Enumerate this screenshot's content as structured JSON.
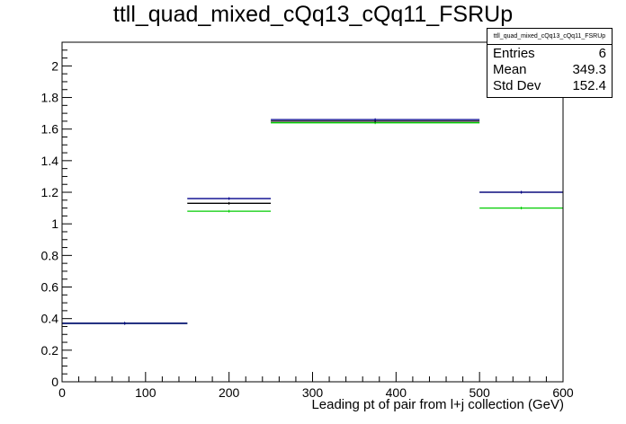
{
  "title": "ttll_quad_mixed_cQq13_cQq11_FSRUp",
  "stats": {
    "name": "ttll_quad_mixed_cQq13_cQq11_FSRUp",
    "entries_label": "Entries",
    "entries_value": "6",
    "mean_label": "Mean",
    "mean_value": "349.3",
    "stddev_label": "Std Dev",
    "stddev_value": "152.4"
  },
  "chart_data": {
    "type": "histogram",
    "title": "ttll_quad_mixed_cQq13_cQq11_FSRUp",
    "xlabel": "Leading pt of pair from l+j collection (GeV)",
    "ylabel": "",
    "xlim": [
      0,
      600
    ],
    "ylim": [
      0,
      2.15
    ],
    "bin_edges": [
      0,
      150,
      250,
      500,
      600
    ],
    "series": [
      {
        "values": [
          0.37,
          1.16,
          1.66,
          1.2
        ],
        "color": "#00008b"
      },
      {
        "values": [
          0.37,
          1.13,
          1.65,
          1.2
        ],
        "color": "#000000"
      },
      {
        "values": [
          0.37,
          1.08,
          1.64,
          1.1
        ],
        "color": "#00cc00"
      }
    ],
    "xticks": [
      0,
      100,
      200,
      300,
      400,
      500,
      600
    ],
    "yticks": [
      0,
      0.2,
      0.4,
      0.6,
      0.8,
      1,
      1.2,
      1.4,
      1.6,
      1.8,
      2
    ],
    "grid": false,
    "legend": "none"
  }
}
